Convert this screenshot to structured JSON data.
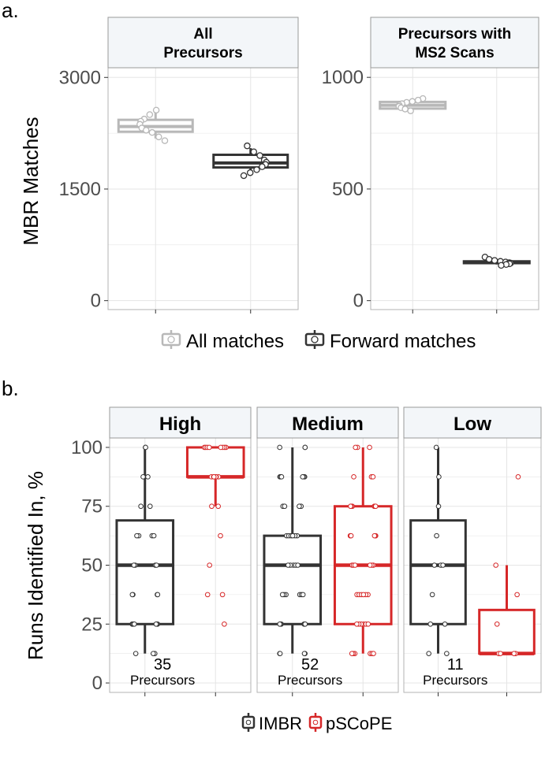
{
  "colors": {
    "all_matches": "#b8b8b8",
    "forward_matches": "#333333",
    "imbr": "#333333",
    "pscope": "#d62728",
    "strip_fill": "#f3f6f9",
    "strip_border": "#999999",
    "grid": "#e5e5e5",
    "panel_border": "#b3b3b3",
    "axis_text": "#4d4d4d"
  },
  "chart_data": [
    {
      "type": "box",
      "panel_tag": "a.",
      "ylabel": "MBR Matches",
      "legend": {
        "placement": "bottom",
        "entries": [
          {
            "label": "All matches",
            "color_key": "all_matches"
          },
          {
            "label": "Forward matches",
            "color_key": "forward_matches"
          }
        ]
      },
      "facets": [
        {
          "title": "All\nPrecursors",
          "ylim": [
            -120,
            3130
          ],
          "yticks": [
            0,
            1500,
            3000
          ],
          "ytick_labels": [
            "0",
            "1500",
            "3000"
          ],
          "boxes": [
            {
              "series": "All matches",
              "color_key": "all_matches",
              "q1": 2270,
              "median": 2340,
              "q3": 2430,
              "whisker_low": 2180,
              "whisker_high": 2560,
              "points": [
                2560,
                2500,
                2440,
                2410,
                2370,
                2320,
                2290,
                2260,
                2200,
                2150
              ]
            },
            {
              "series": "Forward matches",
              "color_key": "forward_matches",
              "q1": 1790,
              "median": 1850,
              "q3": 1960,
              "whisker_low": 1720,
              "whisker_high": 2050,
              "points": [
                2080,
                2000,
                1950,
                1890,
                1860,
                1830,
                1800,
                1760,
                1720,
                1680
              ]
            }
          ]
        },
        {
          "title": "Precursors with\nMS2 Scans",
          "ylim": [
            -40,
            1043
          ],
          "yticks": [
            0,
            500,
            1000
          ],
          "ytick_labels": [
            "0",
            "500",
            "1000"
          ],
          "boxes": [
            {
              "series": "All matches",
              "color_key": "all_matches",
              "q1": 860,
              "median": 875,
              "q3": 890,
              "whisker_low": 855,
              "whisker_high": 905,
              "points": [
                905,
                898,
                892,
                888,
                882,
                876,
                870,
                864,
                858,
                850
              ]
            },
            {
              "series": "Forward matches",
              "color_key": "forward_matches",
              "q1": 168,
              "median": 172,
              "q3": 176,
              "whisker_low": 162,
              "whisker_high": 180,
              "points": [
                195,
                185,
                180,
                176,
                173,
                170,
                168,
                165,
                162,
                158
              ]
            }
          ]
        }
      ]
    },
    {
      "type": "box",
      "panel_tag": "b.",
      "ylabel": "Runs Identified In, %",
      "ylim": [
        -4,
        104
      ],
      "yticks": [
        0,
        25,
        50,
        75,
        100
      ],
      "ytick_labels": [
        "0",
        "25",
        "50",
        "75",
        "100"
      ],
      "legend": {
        "placement": "bottom",
        "entries": [
          {
            "label": "IMBR",
            "color_key": "imbr"
          },
          {
            "label": "pSCoPE",
            "color_key": "pscope"
          }
        ]
      },
      "facets": [
        {
          "title": "High",
          "count_label": "35",
          "count_unit": "Precursors",
          "boxes": [
            {
              "series": "IMBR",
              "color_key": "imbr",
              "q1": 25,
              "median": 50,
              "q3": 69,
              "whisker_low": 12.5,
              "whisker_high": 100,
              "points": [
                100,
                100,
                87.5,
                87.5,
                75,
                75,
                62.5,
                62.5,
                62.5,
                62.5,
                50,
                50,
                50,
                50,
                37.5,
                37.5,
                37.5,
                37.5,
                25,
                25,
                25,
                25,
                25,
                25,
                25,
                12.5,
                12.5,
                12.5
              ]
            },
            {
              "series": "pSCoPE",
              "color_key": "pscope",
              "q1": 87.5,
              "median": 87.5,
              "q3": 100,
              "whisker_low": 75,
              "whisker_high": 100,
              "points": [
                100,
                100,
                100,
                100,
                100,
                100,
                100,
                100,
                87.5,
                87.5,
                87.5,
                87.5,
                87.5,
                87.5,
                75,
                75,
                62.5,
                50,
                37.5,
                37.5,
                25
              ]
            }
          ]
        },
        {
          "title": "Medium",
          "count_label": "52",
          "count_unit": "Precursors",
          "boxes": [
            {
              "series": "IMBR",
              "color_key": "imbr",
              "q1": 25,
              "median": 50,
              "q3": 62.5,
              "whisker_low": 12.5,
              "whisker_high": 100,
              "points": [
                100,
                100,
                100,
                87.5,
                87.5,
                87.5,
                87.5,
                87.5,
                87.5,
                75,
                75,
                75,
                75,
                62.5,
                62.5,
                62.5,
                62.5,
                62.5,
                62.5,
                50,
                50,
                50,
                50,
                50,
                37.5,
                37.5,
                37.5,
                37.5,
                37.5,
                37.5,
                25,
                25,
                25,
                25,
                25,
                25,
                12.5,
                12.5,
                12.5,
                12.5
              ]
            },
            {
              "series": "pSCoPE",
              "color_key": "pscope",
              "q1": 25,
              "median": 50,
              "q3": 75,
              "whisker_low": 12.5,
              "whisker_high": 100,
              "points": [
                100,
                100,
                100,
                87.5,
                87.5,
                87.5,
                75,
                75,
                75,
                75,
                75,
                75,
                62.5,
                62.5,
                62.5,
                62.5,
                62.5,
                62.5,
                50,
                50,
                50,
                50,
                50,
                50,
                37.5,
                37.5,
                37.5,
                37.5,
                37.5,
                37.5,
                25,
                25,
                25,
                25,
                25,
                25,
                12.5,
                12.5,
                12.5,
                12.5,
                12.5,
                12.5
              ]
            }
          ]
        },
        {
          "title": "Low",
          "count_label": "11",
          "count_unit": "Precursors",
          "boxes": [
            {
              "series": "IMBR",
              "color_key": "imbr",
              "q1": 25,
              "median": 50,
              "q3": 69,
              "whisker_low": 12.5,
              "whisker_high": 100,
              "points": [
                100,
                87.5,
                75,
                62.5,
                50,
                50,
                50,
                37.5,
                25,
                25,
                12.5,
                12.5
              ]
            },
            {
              "series": "pSCoPE",
              "color_key": "pscope",
              "q1": 12.5,
              "median": 12.5,
              "q3": 31,
              "whisker_low": 12.5,
              "whisker_high": 50,
              "points": [
                87.5,
                50,
                37.5,
                25,
                12.5,
                12.5,
                12.5,
                12.5
              ]
            }
          ]
        }
      ]
    }
  ]
}
